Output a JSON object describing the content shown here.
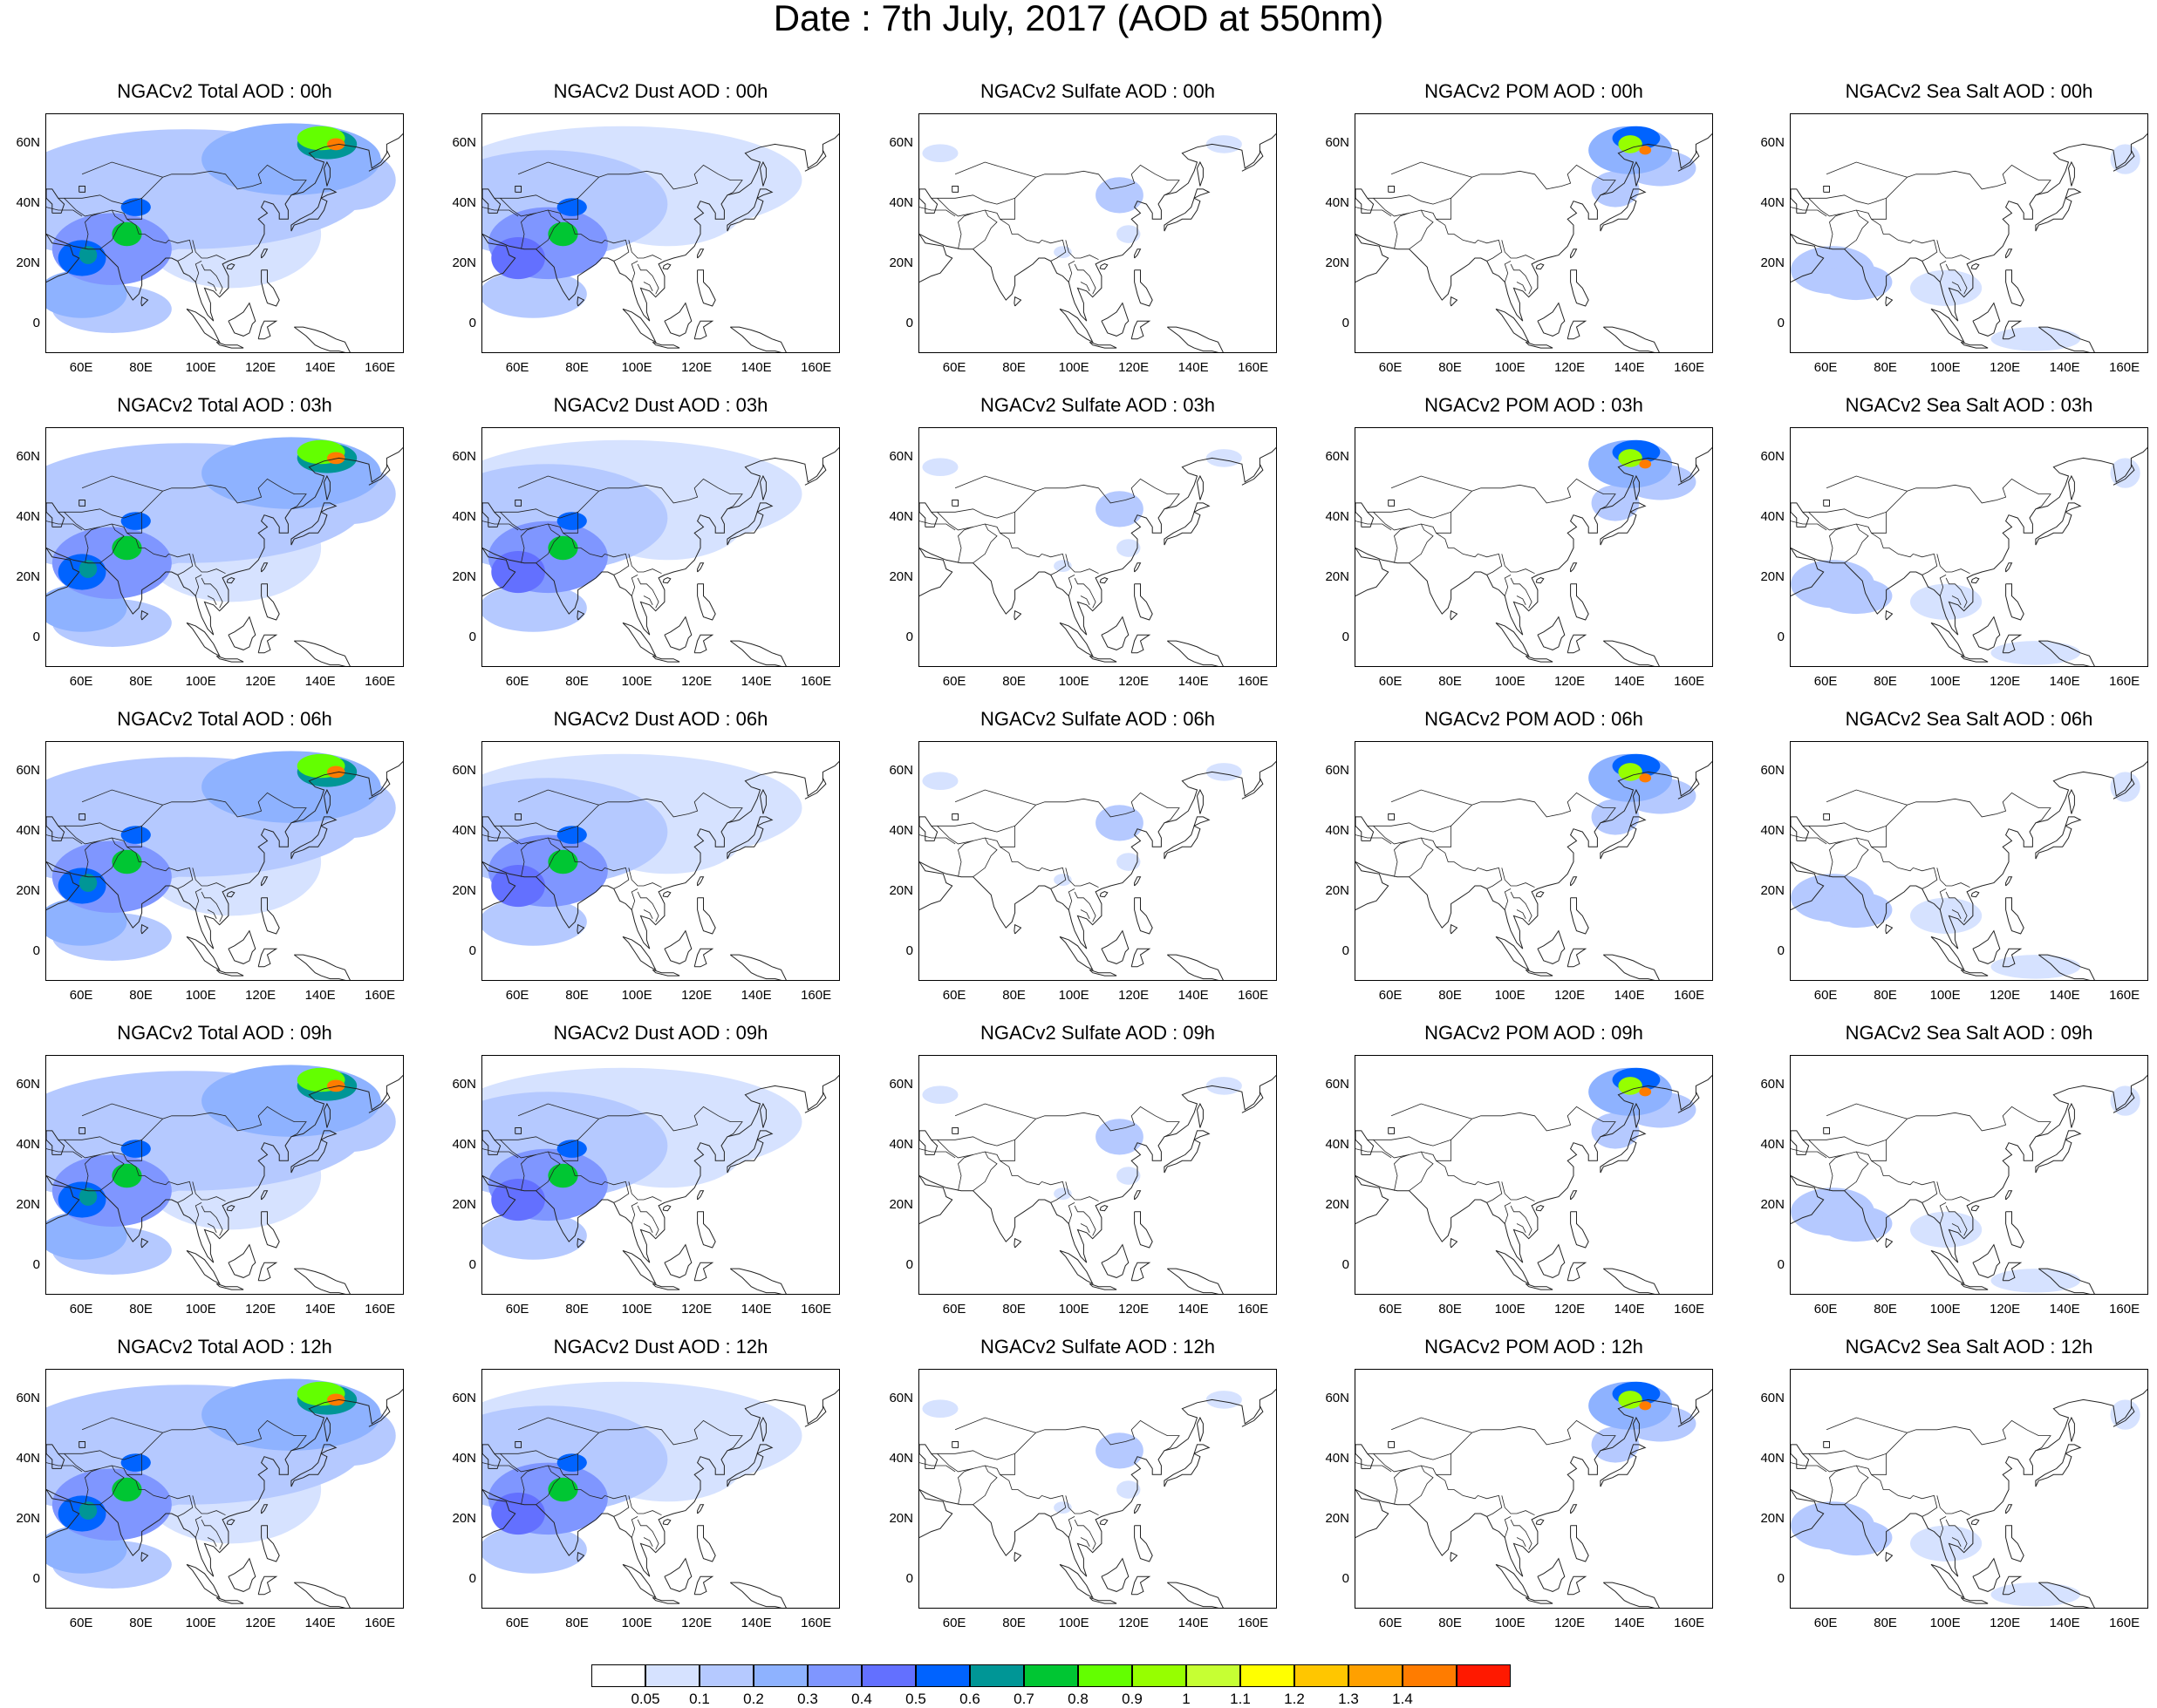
{
  "title": "Date : 7th July, 2017 (AOD at 550nm)",
  "rows": [
    [
      "NGACv2 Total AOD : 00h",
      "NGACv2 Dust AOD : 00h",
      "NGACv2 Sulfate AOD : 00h",
      "NGACv2 POM AOD : 00h",
      "NGACv2 Sea Salt AOD : 00h"
    ],
    [
      "NGACv2 Total AOD : 03h",
      "NGACv2 Dust AOD : 03h",
      "NGACv2 Sulfate AOD : 03h",
      "NGACv2 POM AOD : 03h",
      "NGACv2 Sea Salt AOD : 03h"
    ],
    [
      "NGACv2 Total AOD : 06h",
      "NGACv2 Dust AOD : 06h",
      "NGACv2 Sulfate AOD : 06h",
      "NGACv2 POM AOD : 06h",
      "NGACv2 Sea Salt AOD : 06h"
    ],
    [
      "NGACv2 Total AOD : 09h",
      "NGACv2 Dust AOD : 09h",
      "NGACv2 Sulfate AOD : 09h",
      "NGACv2 POM AOD : 09h",
      "NGACv2 Sea Salt  AOD : 09h"
    ],
    [
      "NGACv2 Total AOD  : 12h",
      "NGACv2 Dust AOD : 12h",
      "NGACv2 Sulfate AOD : 12h",
      "NGACv2 POM  AOD : 12h",
      "NGACv2 Sea Salt  AOD : 12h"
    ]
  ],
  "lat_ticks": [
    "60N",
    "40N",
    "20N",
    "0"
  ],
  "lon_ticks": [
    "60E",
    "80E",
    "100E",
    "120E",
    "140E",
    "160E"
  ],
  "colorbar": {
    "colors": [
      "#ffffff",
      "#d6e2ff",
      "#b5c9ff",
      "#8eb2ff",
      "#7f96ff",
      "#6370ff",
      "#0063ff",
      "#009696",
      "#00c633",
      "#63ff00",
      "#96ff00",
      "#c6ff33",
      "#ffff00",
      "#ffc600",
      "#ffa000",
      "#ff7c00",
      "#ff1900"
    ],
    "labels": [
      "0.05",
      "0.1",
      "0.2",
      "0.3",
      "0.4",
      "0.5",
      "0.6",
      "0.7",
      "0.8",
      "0.9",
      "1",
      "1.1",
      "1.2",
      "1.3",
      "1.4"
    ]
  }
}
